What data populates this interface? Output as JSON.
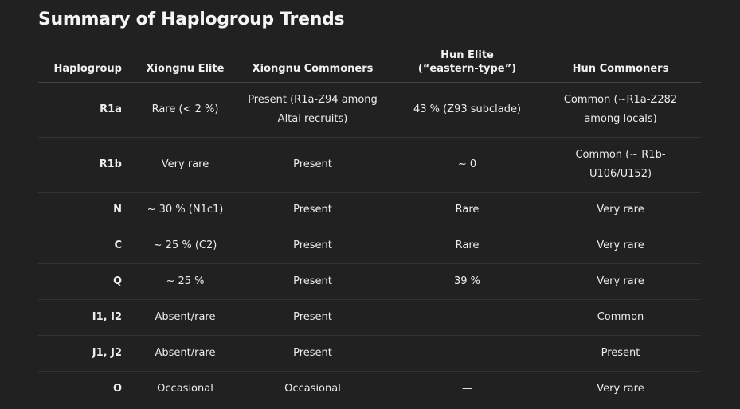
{
  "title": "Summary of Haplogroup Trends",
  "table": {
    "headers": [
      "Haplogroup",
      "Xiongnu Elite",
      "Xiongnu Commoners",
      "Hun Elite\n(“eastern-type”)",
      "Hun Commoners"
    ],
    "header_lines": {
      "hun_elite_1": "Hun Elite",
      "hun_elite_2": "(“eastern-type”)"
    },
    "rows": [
      [
        "R1a",
        "Rare (< 2 %)",
        "Present (R1a-Z94 among Altai recruits)",
        "43 % (Z93 subclade)",
        "Common (~R1a-Z282 among locals)"
      ],
      [
        "R1b",
        "Very rare",
        "Present",
        "~ 0",
        "Common (~ R1b-U106/U152)"
      ],
      [
        "N",
        "~ 30 % (N1c1)",
        "Present",
        "Rare",
        "Very rare"
      ],
      [
        "C",
        "~ 25 % (C2)",
        "Present",
        "Rare",
        "Very rare"
      ],
      [
        "Q",
        "~ 25 %",
        "Present",
        "39 %",
        "Very rare"
      ],
      [
        "I1, I2",
        "Absent/rare",
        "Present",
        "—",
        "Common"
      ],
      [
        "J1, J2",
        "Absent/rare",
        "Present",
        "—",
        "Present"
      ],
      [
        "O",
        "Occasional",
        "Occasional",
        "—",
        "Very rare"
      ]
    ]
  }
}
